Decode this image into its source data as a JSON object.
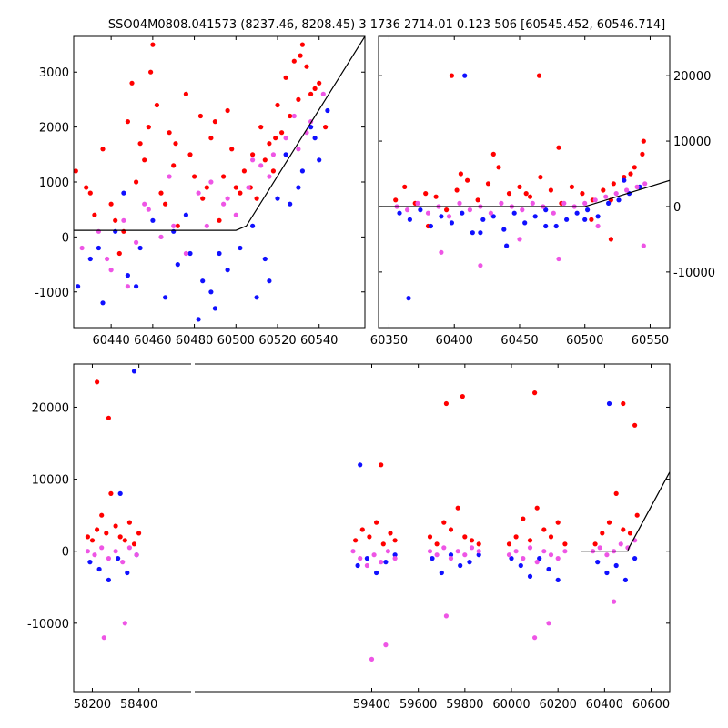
{
  "figure": {
    "title": "SSO04M0808.041573 (8237.46, 8208.45)   3 1736 2714.01 0.123 506 [60545.452, 60546.714]"
  },
  "colors": {
    "red": "#ff0000",
    "blue": "#1010ff",
    "magenta": "#ee55e5",
    "model": "#000000"
  },
  "chart_data": [
    {
      "type": "scatter",
      "panel": "top-left zoom",
      "xlim": [
        60422,
        60562
      ],
      "ylim": [
        -1650,
        3650
      ],
      "xticks": [
        60440,
        60460,
        60480,
        60500,
        60520,
        60540
      ],
      "yticks": [
        -1000,
        0,
        1000,
        2000,
        3000
      ],
      "ytick_side": "left",
      "model_line": {
        "x": [
          60422,
          60500,
          60505,
          60562
        ],
        "y": [
          120,
          120,
          200,
          3650
        ]
      },
      "series": [
        {
          "color": "red",
          "x": [
            60423,
            60428,
            60432,
            60436,
            60440,
            60444,
            60448,
            60452,
            60456,
            60460,
            60464,
            60468,
            60472,
            60476,
            60480,
            60484,
            60488,
            60492,
            60496,
            60500,
            60504,
            60508,
            60512,
            60516,
            60520,
            60524,
            60528,
            60532,
            60536,
            60540,
            60450,
            60458,
            60470,
            60486,
            60498,
            60510,
            60522,
            60534,
            60446,
            60462,
            60478,
            60494,
            60514,
            60526,
            60538,
            60430,
            60442,
            60454,
            60466,
            60490,
            60502,
            60518,
            60530,
            60459,
            60471,
            60483,
            60507,
            60519,
            60531,
            60543
          ],
          "y": [
            1200,
            900,
            400,
            1600,
            600,
            -300,
            2100,
            1000,
            1400,
            3500,
            800,
            1900,
            200,
            2600,
            1100,
            700,
            1800,
            300,
            2300,
            900,
            1200,
            1500,
            2000,
            1700,
            2400,
            2900,
            3200,
            3500,
            2600,
            2800,
            2800,
            2000,
            1300,
            900,
            1600,
            700,
            1900,
            3100,
            100,
            2400,
            1500,
            1100,
            1400,
            2200,
            2700,
            800,
            300,
            1700,
            600,
            2100,
            800,
            1200,
            2500,
            3000,
            1700,
            2200,
            900,
            1800,
            3300,
            2000
          ]
        },
        {
          "color": "blue",
          "x": [
            60424,
            60430,
            60436,
            60442,
            60448,
            60454,
            60460,
            60466,
            60472,
            60478,
            60484,
            60490,
            60496,
            60502,
            60508,
            60514,
            60520,
            60526,
            60532,
            60538,
            60544,
            60446,
            60476,
            60488,
            60510,
            60524,
            60536,
            60434,
            60452,
            60470,
            60492,
            60516,
            60540,
            60482,
            60530
          ],
          "y": [
            -900,
            -400,
            -1200,
            100,
            -700,
            -200,
            300,
            -1100,
            -500,
            -300,
            -800,
            -1300,
            -600,
            -200,
            200,
            -400,
            700,
            600,
            1200,
            1800,
            2300,
            800,
            400,
            -1000,
            -1100,
            1500,
            2000,
            -200,
            -900,
            100,
            -300,
            -800,
            1400,
            -1500,
            900
          ]
        },
        {
          "color": "magenta",
          "x": [
            60426,
            60434,
            60440,
            60446,
            60452,
            60458,
            60464,
            60470,
            60476,
            60482,
            60488,
            60494,
            60500,
            60506,
            60512,
            60518,
            60524,
            60530,
            60536,
            60542,
            60448,
            60468,
            60496,
            60516,
            60534,
            60438,
            60456,
            60486,
            60508,
            60528
          ],
          "y": [
            -200,
            100,
            -600,
            300,
            -100,
            500,
            0,
            200,
            -300,
            800,
            1000,
            600,
            400,
            900,
            1300,
            1500,
            1800,
            1600,
            2100,
            2600,
            -900,
            1100,
            700,
            1100,
            1900,
            -400,
            600,
            200,
            1400,
            2200
          ]
        }
      ]
    },
    {
      "type": "scatter",
      "panel": "top-right season",
      "xlim": [
        60342,
        60565
      ],
      "ylim": [
        -18500,
        26000
      ],
      "xticks": [
        60350,
        60400,
        60450,
        60500,
        60550
      ],
      "yticks": [
        -10000,
        0,
        10000,
        20000
      ],
      "ytick_side": "right",
      "model_line": {
        "x": [
          60342,
          60500,
          60505,
          60565
        ],
        "y": [
          0,
          0,
          300,
          4000
        ]
      },
      "series": [
        {
          "color": "red",
          "x": [
            60355,
            60362,
            60370,
            60378,
            60386,
            60394,
            60402,
            60410,
            60418,
            60426,
            60434,
            60442,
            60450,
            60458,
            60466,
            60474,
            60482,
            60490,
            60498,
            60506,
            60514,
            60522,
            60530,
            60538,
            60544,
            60380,
            60405,
            60430,
            60455,
            60480,
            60505,
            60520,
            60535,
            60545,
            60398,
            60465,
            60520
          ],
          "y": [
            1000,
            3000,
            500,
            2000,
            1500,
            -500,
            2500,
            4000,
            1000,
            3500,
            6000,
            2000,
            3000,
            1500,
            4500,
            2500,
            500,
            3000,
            2000,
            1000,
            2500,
            3500,
            4500,
            6000,
            8000,
            -3000,
            5000,
            8000,
            2000,
            9000,
            -2000,
            1000,
            5000,
            10000,
            20000,
            20000,
            -5000
          ]
        },
        {
          "color": "blue",
          "x": [
            60358,
            60366,
            60374,
            60382,
            60390,
            60398,
            60406,
            60414,
            60422,
            60430,
            60438,
            60446,
            60454,
            60462,
            60470,
            60478,
            60486,
            60494,
            60502,
            60510,
            60518,
            60526,
            60534,
            60542,
            60420,
            60440,
            60470,
            60500,
            60530,
            60365,
            60408
          ],
          "y": [
            -1000,
            -2000,
            -500,
            -3000,
            -1500,
            -2500,
            -1000,
            -4000,
            -2000,
            -1500,
            -3500,
            -1000,
            -2500,
            -1500,
            -500,
            -3000,
            -2000,
            -1000,
            -500,
            -1500,
            500,
            1000,
            2000,
            3000,
            -4000,
            -6000,
            -3000,
            -2000,
            4000,
            -14000,
            20000
          ]
        },
        {
          "color": "magenta",
          "x": [
            60356,
            60364,
            60372,
            60380,
            60388,
            60396,
            60404,
            60412,
            60420,
            60428,
            60436,
            60444,
            60452,
            60460,
            60468,
            60476,
            60484,
            60492,
            60500,
            60508,
            60516,
            60524,
            60532,
            60540,
            60546,
            60390,
            60420,
            60450,
            60480,
            60510,
            60545
          ],
          "y": [
            0,
            -500,
            500,
            -1000,
            0,
            -1500,
            500,
            -500,
            0,
            -1000,
            500,
            0,
            -500,
            500,
            0,
            -1000,
            500,
            0,
            500,
            1000,
            1500,
            2000,
            2500,
            3000,
            3500,
            -7000,
            -9000,
            -5000,
            -8000,
            -3000,
            -6000
          ]
        }
      ]
    },
    {
      "type": "scatter",
      "panel": "bottom all seasons",
      "xlim": [
        58120,
        60680
      ],
      "ylim": [
        -19500,
        26000
      ],
      "xticks": [
        58200,
        58400,
        59400,
        59600,
        59800,
        60000,
        60200,
        60400,
        60600
      ],
      "yticks": [
        -10000,
        0,
        10000,
        20000
      ],
      "ytick_side": "left",
      "model_line": {
        "x": [
          60300,
          60500,
          60505,
          60680
        ],
        "y": [
          0,
          0,
          500,
          11000
        ]
      },
      "series": [
        {
          "color": "red",
          "x": [
            58180,
            58200,
            58220,
            58240,
            58260,
            58280,
            58300,
            58320,
            58340,
            58360,
            58380,
            58400,
            59330,
            59360,
            59390,
            59420,
            59450,
            59480,
            59500,
            59650,
            59680,
            59710,
            59740,
            59770,
            59800,
            59830,
            59860,
            59990,
            60020,
            60050,
            60080,
            60110,
            60140,
            60170,
            60200,
            60230,
            60360,
            60390,
            60420,
            60450,
            60480,
            60510,
            60540,
            58220,
            58270,
            59440,
            59720,
            59790,
            60100,
            60480,
            60530
          ],
          "y": [
            2000,
            1500,
            3000,
            5000,
            2500,
            8000,
            3500,
            2000,
            1500,
            4000,
            1000,
            2500,
            1500,
            3000,
            2000,
            4000,
            1000,
            2500,
            1500,
            2000,
            1000,
            4000,
            3000,
            6000,
            2000,
            1500,
            1000,
            1000,
            2000,
            4500,
            1500,
            6000,
            3000,
            2000,
            4000,
            1000,
            1000,
            2500,
            4000,
            8000,
            3000,
            2500,
            5000,
            23500,
            18500,
            12000,
            20500,
            21500,
            22000,
            20500,
            17500
          ]
        },
        {
          "color": "blue",
          "x": [
            58190,
            58230,
            58270,
            58310,
            58350,
            58390,
            59340,
            59380,
            59420,
            59460,
            59500,
            59660,
            59700,
            59740,
            59780,
            59820,
            59860,
            60000,
            60040,
            60080,
            60120,
            60160,
            60200,
            60370,
            60410,
            60450,
            60490,
            60530,
            58320,
            59350,
            60420,
            58380
          ],
          "y": [
            -1500,
            -2500,
            -4000,
            -1000,
            -3000,
            -500,
            -2000,
            -1000,
            -3000,
            -1500,
            -500,
            -1000,
            -3000,
            -500,
            -2000,
            -1500,
            -500,
            -1000,
            -2000,
            -3500,
            -1000,
            -2500,
            -4000,
            -1500,
            -3000,
            -2000,
            -4000,
            -1000,
            8000,
            12000,
            20500,
            25000
          ]
        },
        {
          "color": "magenta",
          "x": [
            58180,
            58210,
            58240,
            58270,
            58300,
            58330,
            58360,
            58390,
            59320,
            59350,
            59380,
            59410,
            59440,
            59470,
            59500,
            59650,
            59680,
            59710,
            59740,
            59770,
            59800,
            59830,
            59860,
            59990,
            60020,
            60050,
            60080,
            60110,
            60140,
            60170,
            60200,
            60230,
            60350,
            60380,
            60410,
            60440,
            60470,
            60500,
            60530,
            58250,
            58340,
            59400,
            59460,
            59720,
            60100,
            60160,
            60440
          ],
          "y": [
            0,
            -500,
            500,
            -1000,
            0,
            -1500,
            500,
            -500,
            0,
            -1000,
            -2000,
            -500,
            -1500,
            0,
            -1000,
            0,
            -500,
            500,
            -1000,
            0,
            -500,
            500,
            0,
            -500,
            0,
            -1000,
            500,
            -1500,
            0,
            -500,
            -1000,
            0,
            0,
            500,
            -500,
            0,
            1000,
            500,
            1500,
            -12000,
            -10000,
            -15000,
            -13000,
            -9000,
            -12000,
            -10000,
            -7000
          ]
        }
      ]
    }
  ]
}
